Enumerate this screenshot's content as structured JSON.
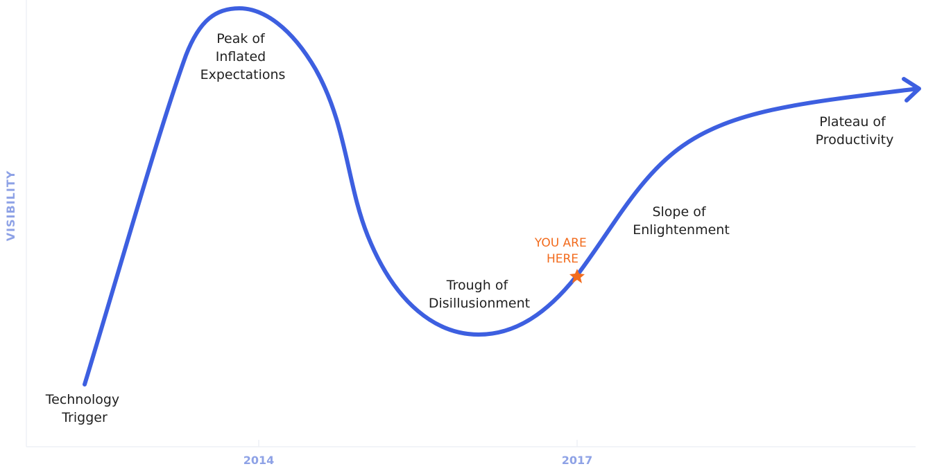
{
  "colors": {
    "curve": "#3d5fe0",
    "axis_text": "#8ea2e6",
    "axis_line": "#eef0f5",
    "marker": "#f26b1d",
    "label": "#1f1f1f"
  },
  "y_axis_label": "VISIBILITY",
  "x_axis_ticks": [
    "2014",
    "2017"
  ],
  "phases": {
    "technology_trigger": [
      "Technology",
      "Trigger"
    ],
    "peak": [
      "Peak of",
      "Inflated",
      "Expectations"
    ],
    "trough": [
      "Trough of",
      "Disillusionment"
    ],
    "slope": [
      "Slope of",
      "Enlightenment"
    ],
    "plateau": [
      "Plateau of",
      "Productivity"
    ]
  },
  "you_are_here": [
    "YOU ARE",
    "HERE"
  ],
  "marker_icon": "star-icon"
}
